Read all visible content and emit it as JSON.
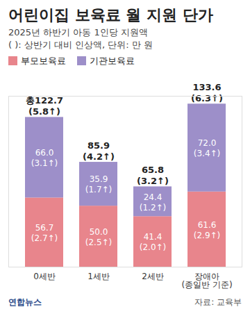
{
  "chart_data": {
    "type": "bar",
    "stacked": true,
    "data_labels": true,
    "tick_labels": "x",
    "title": "어린이집 보육료 월 지원 단가",
    "subtitle": "2025년 하반기 아동 1인당 지원액",
    "note": "( ): 상반기 대비 인상액, 단위: 만 원",
    "categories": [
      "0세반",
      "1세반",
      "2세반",
      "장애아\n(종일반 기준)"
    ],
    "series": [
      {
        "name": "부모보육료",
        "color": "#e8858c",
        "values": [
          56.7,
          50.0,
          41.4,
          61.6
        ],
        "value_labels": [
          "56.7",
          "50.0",
          "41.4",
          "61.6"
        ],
        "increase": [
          2.7,
          2.5,
          2.0,
          2.9
        ],
        "increase_labels": [
          "(2.7↑)",
          "(2.5↑)",
          "(2.0↑)",
          "(2.9↑)"
        ]
      },
      {
        "name": "기관보육료",
        "color": "#9d8fc9",
        "values": [
          66.0,
          35.9,
          24.4,
          72.0
        ],
        "value_labels": [
          "66.0",
          "35.9",
          "24.4",
          "72.0"
        ],
        "increase": [
          3.1,
          1.7,
          1.2,
          3.4
        ],
        "increase_labels": [
          "(3.1↑)",
          "(1.7↑)",
          "(1.2↑)",
          "(3.4↑)"
        ]
      }
    ],
    "totals": [
      122.7,
      85.9,
      65.8,
      133.6
    ],
    "total_labels": [
      "총122.7",
      "85.9",
      "65.8",
      "133.6"
    ],
    "total_increase": [
      5.8,
      4.2,
      3.2,
      6.3
    ],
    "total_increase_labels": [
      "(5.8↑)",
      "(4.2↑)",
      "(3.2↑)",
      "(6.3↑)"
    ],
    "ylim": [
      0,
      140
    ],
    "yticks": [],
    "source": "자료: 교육부",
    "logo": "연합뉴스"
  }
}
